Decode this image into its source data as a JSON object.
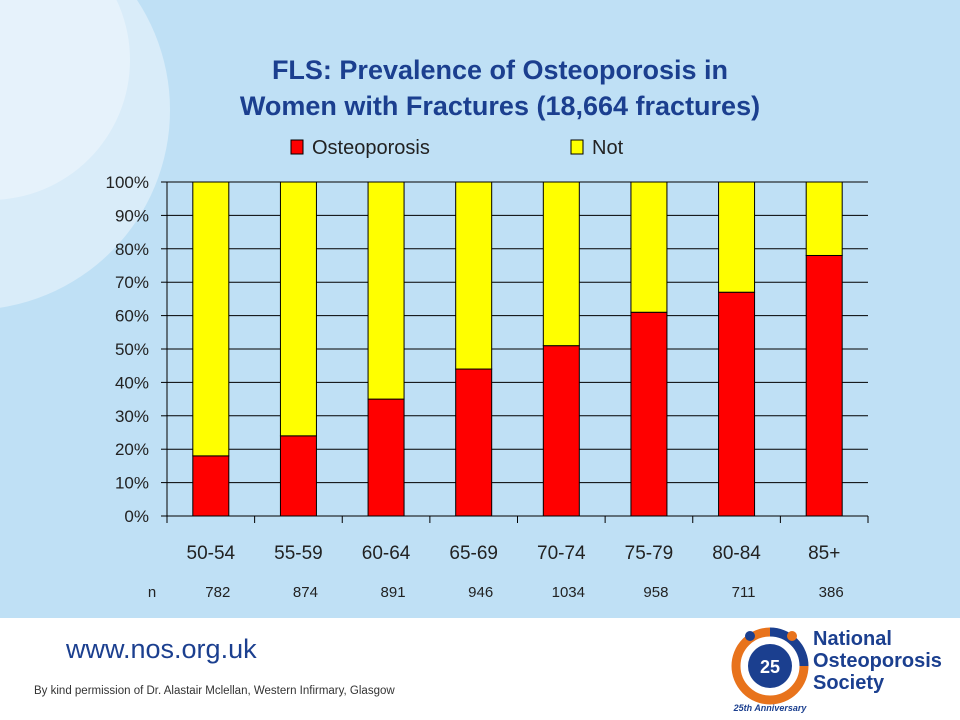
{
  "slide": {
    "title_line1": "FLS: Prevalence of Osteoporosis in",
    "title_line2": "Women with Fractures (18,664 fractures)",
    "n_label": "n",
    "website": "www.nos.org.uk",
    "credit": "By kind permission of Dr. Alastair Mclellan, Western Infirmary, Glasgow"
  },
  "logo": {
    "line1": "National",
    "line2": "Osteoporosis",
    "line3": "Society",
    "badge_number": "25",
    "badge_ring_text": "25th Anniversary",
    "colors": {
      "navy": "#1b3f8f",
      "orange": "#e8731c"
    }
  },
  "chart_data": {
    "type": "bar",
    "stacked": true,
    "percent": true,
    "title": "FLS: Prevalence of Osteoporosis in Women with Fractures (18,664 fractures)",
    "categories": [
      "50-54",
      "55-59",
      "60-64",
      "65-69",
      "70-74",
      "75-79",
      "80-84",
      "85+"
    ],
    "series": [
      {
        "name": "Osteoporosis",
        "color": "#ff0000",
        "values": [
          18,
          24,
          35,
          44,
          51,
          61,
          67,
          78
        ]
      },
      {
        "name": "Not",
        "color": "#ffff00",
        "values": [
          82,
          76,
          65,
          56,
          49,
          39,
          33,
          22
        ]
      }
    ],
    "n_values": [
      "782",
      "874",
      "891",
      "946",
      "1034",
      "958",
      "711",
      "386"
    ],
    "y_ticks": [
      "0%",
      "10%",
      "20%",
      "30%",
      "40%",
      "50%",
      "60%",
      "70%",
      "80%",
      "90%",
      "100%"
    ],
    "ylim": [
      0,
      100
    ],
    "xlabel": "",
    "ylabel": "",
    "legend": "top",
    "grid": true
  }
}
